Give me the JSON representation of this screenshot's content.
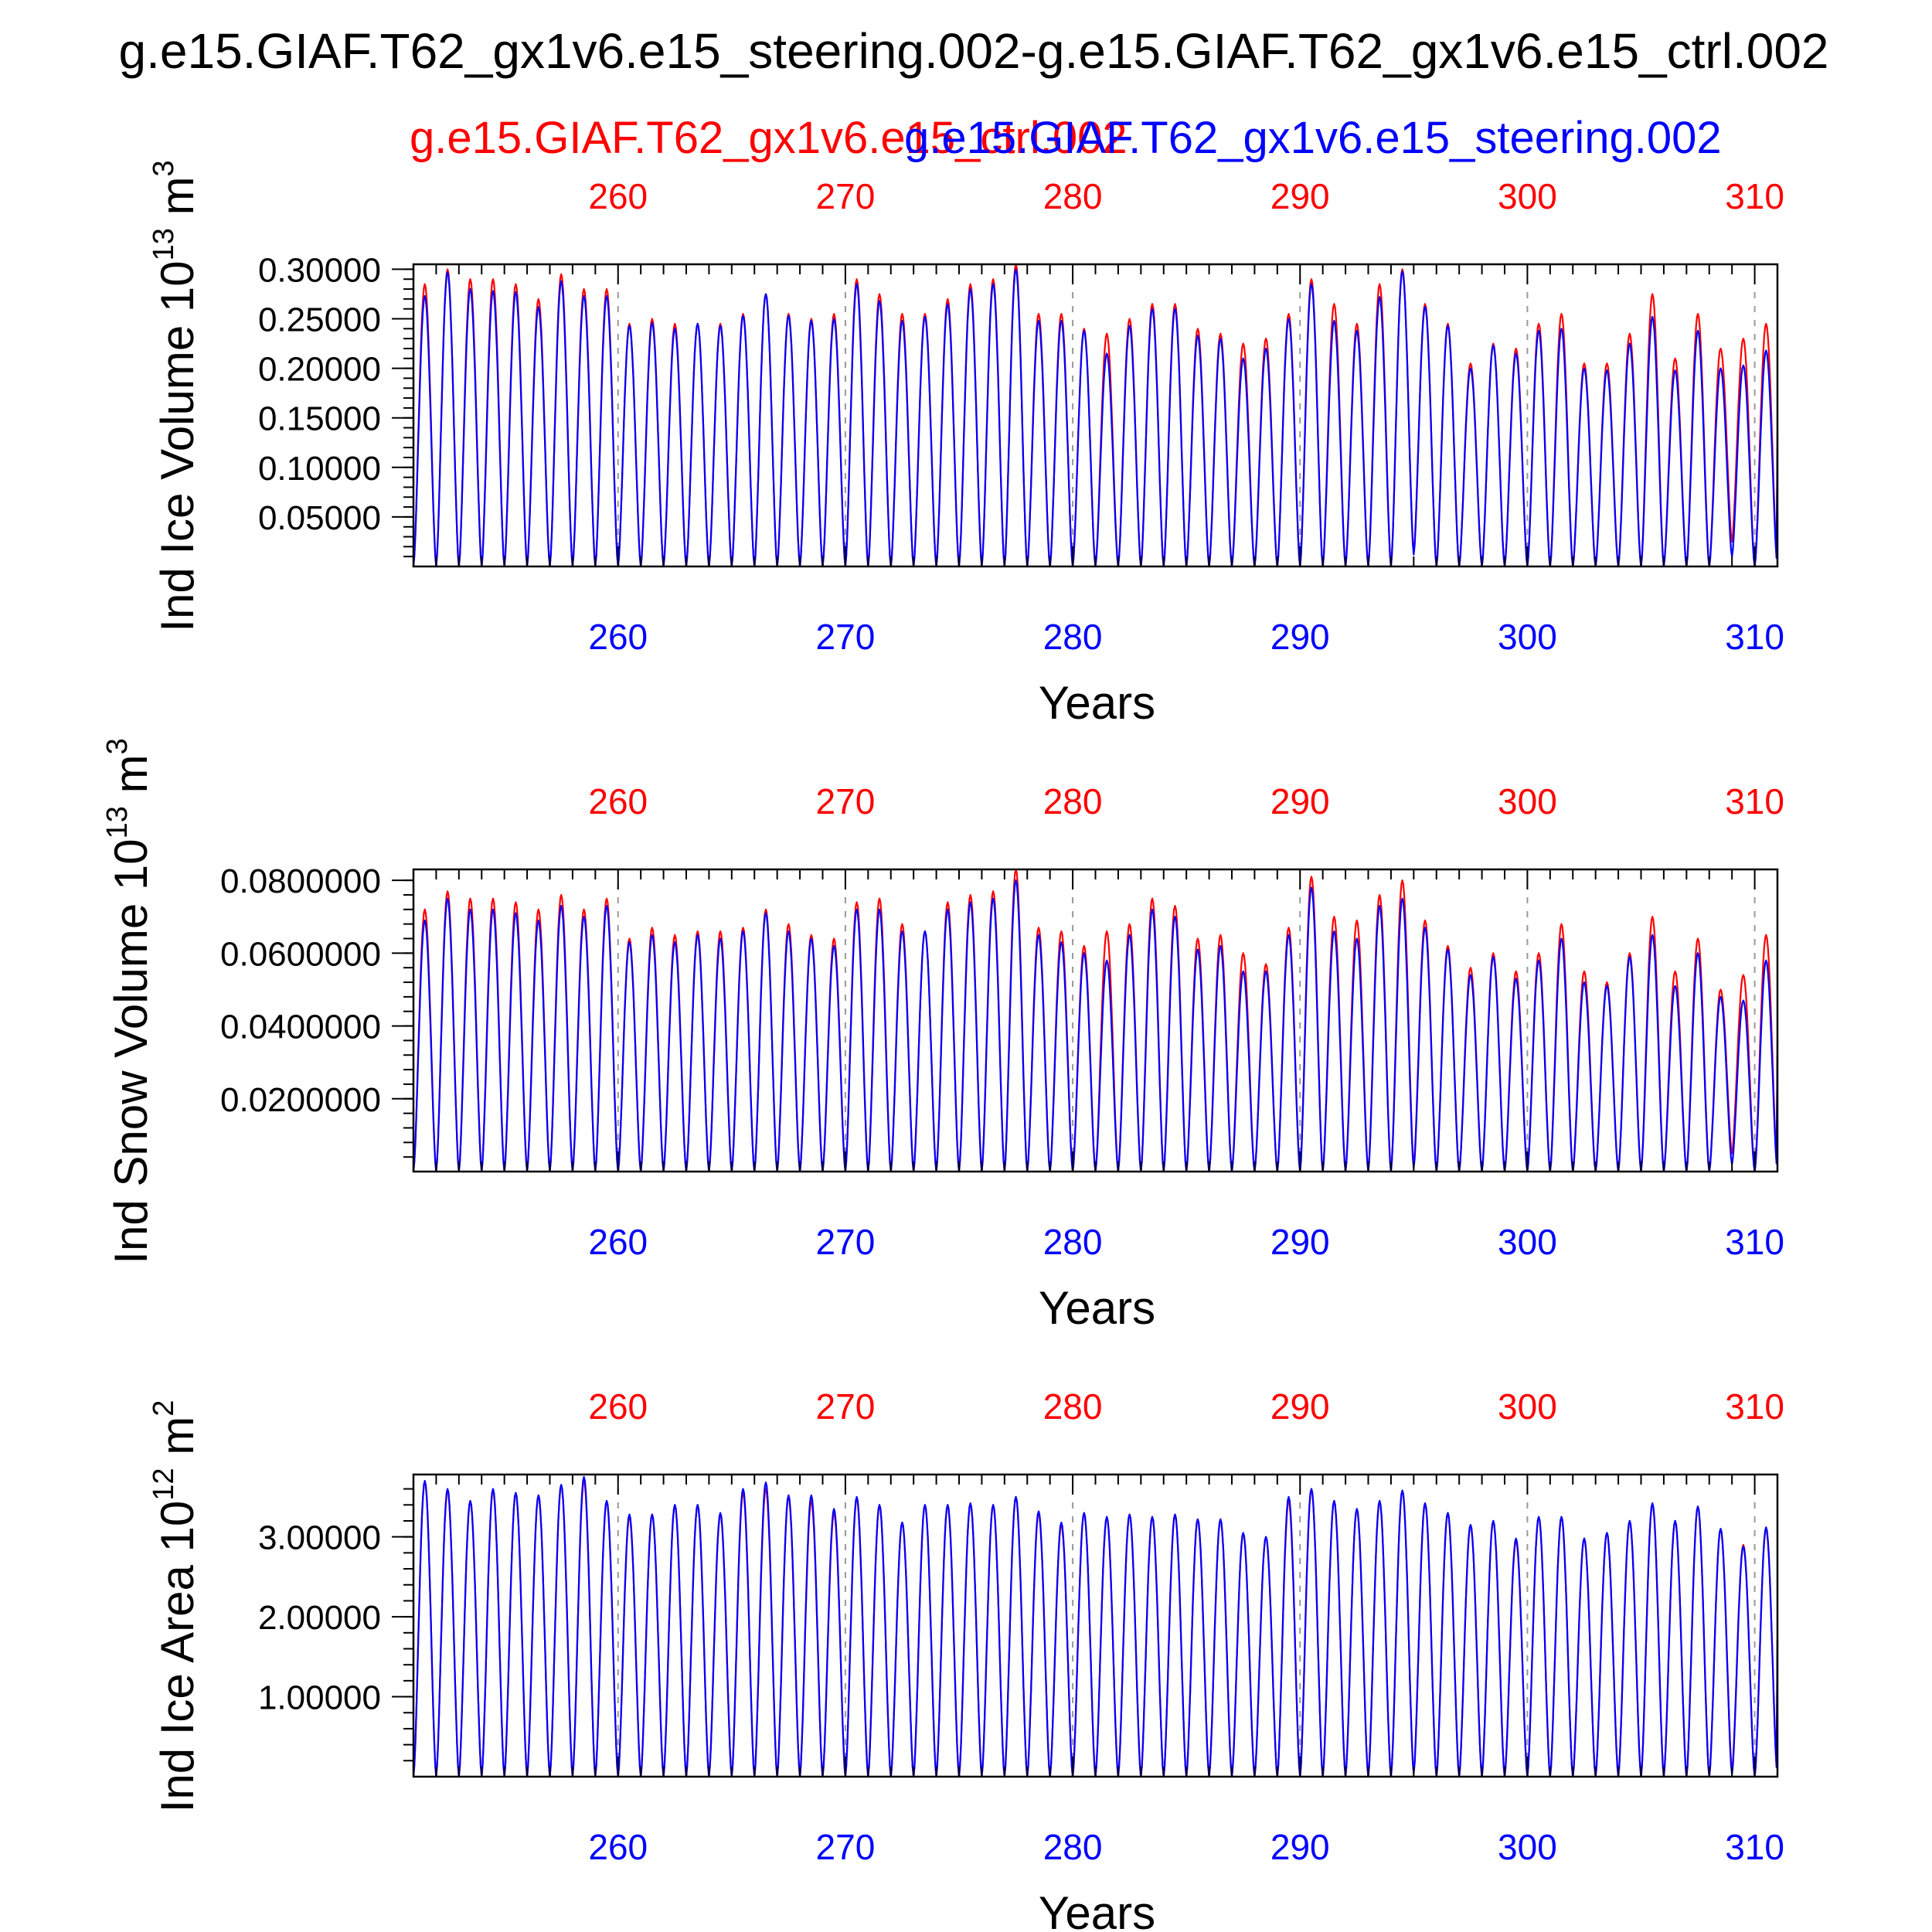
{
  "title": "g.e15.GIAF.T62_gx1v6.e15_steering.002-g.e15.GIAF.T62_gx1v6.e15_ctrl.002",
  "legend": {
    "ctrl_label": "g.e15.GIAF.T62_gx1v6.e15_ctrl.002",
    "steering_label": "g.e15.GIAF.T62_gx1v6.e15_steering.002"
  },
  "colors": {
    "ctrl": "#ff0000",
    "steering": "#0000ff",
    "frame": "#000000",
    "grid": "#999999"
  },
  "xlabel": "Years",
  "x_ticks": [
    260,
    270,
    280,
    290,
    300,
    310
  ],
  "xlim": [
    251,
    311
  ],
  "chart_data": [
    {
      "type": "line",
      "name": "ice-volume",
      "ylabel_main": "Ind Ice Volume 10",
      "ylabel_exp": "13",
      "ylabel_unit": " m",
      "ylabel_unit_exp": "3",
      "xlabel": "Years",
      "ylim": [
        0,
        0.305
      ],
      "y_ticks": [
        0.05,
        0.1,
        0.15,
        0.2,
        0.25,
        0.3
      ],
      "y_tick_labels": [
        "0.05000",
        "0.10000",
        "0.15000",
        "0.20000",
        "0.25000",
        "0.30000"
      ],
      "x_ticks": [
        260,
        270,
        280,
        290,
        300,
        310
      ],
      "series": [
        {
          "name": "g.e15.GIAF.T62_gx1v6.e15_ctrl.002",
          "color": "#ff0000",
          "annual_max": [
            0.285,
            0.3,
            0.29,
            0.29,
            0.285,
            0.27,
            0.295,
            0.28,
            0.28,
            0.245,
            0.25,
            0.245,
            0.245,
            0.245,
            0.255,
            0.275,
            0.255,
            0.25,
            0.255,
            0.29,
            0.275,
            0.255,
            0.255,
            0.27,
            0.285,
            0.29,
            0.305,
            0.255,
            0.255,
            0.24,
            0.235,
            0.25,
            0.265,
            0.265,
            0.24,
            0.235,
            0.225,
            0.23,
            0.255,
            0.29,
            0.265,
            0.245,
            0.285,
            0.3,
            0.265,
            0.245,
            0.205,
            0.225,
            0.22,
            0.245,
            0.255,
            0.205,
            0.205,
            0.235,
            0.275,
            0.21,
            0.255,
            0.22,
            0.23,
            0.245
          ],
          "annual_min": [
            0.0,
            0.0,
            0.0,
            0.0,
            0.0,
            0.0,
            0.0,
            0.0,
            0.0,
            0.0,
            0.0,
            0.0,
            0.0,
            0.0,
            0.0,
            0.0,
            0.0,
            0.0,
            0.0,
            0.0,
            0.0,
            0.0,
            0.0,
            0.0,
            0.0,
            0.0,
            0.0,
            0.0,
            0.0,
            0.0,
            0.0,
            0.0,
            0.0,
            0.0,
            0.0,
            0.0,
            0.0,
            0.0,
            0.0,
            0.0,
            0.0,
            0.0,
            0.0,
            0.0,
            0.015,
            0.0,
            0.0,
            0.0,
            0.0,
            0.0,
            0.0,
            0.0,
            0.0,
            0.0,
            0.0,
            0.0,
            0.0,
            0.0,
            0.025,
            0.0
          ]
        },
        {
          "name": "g.e15.GIAF.T62_gx1v6.e15_steering.002",
          "color": "#0000ff",
          "annual_max": [
            0.273,
            0.297,
            0.28,
            0.278,
            0.277,
            0.262,
            0.288,
            0.273,
            0.273,
            0.243,
            0.246,
            0.24,
            0.245,
            0.243,
            0.253,
            0.275,
            0.253,
            0.248,
            0.25,
            0.285,
            0.268,
            0.248,
            0.252,
            0.265,
            0.28,
            0.285,
            0.3,
            0.248,
            0.248,
            0.238,
            0.215,
            0.243,
            0.26,
            0.26,
            0.233,
            0.23,
            0.21,
            0.22,
            0.25,
            0.285,
            0.248,
            0.238,
            0.272,
            0.298,
            0.262,
            0.243,
            0.2,
            0.223,
            0.215,
            0.238,
            0.24,
            0.2,
            0.198,
            0.225,
            0.252,
            0.198,
            0.238,
            0.2,
            0.203,
            0.218
          ],
          "annual_min": [
            0.0,
            0.0,
            0.0,
            0.0,
            0.0,
            0.0,
            0.0,
            0.0,
            0.0,
            0.0,
            0.0,
            0.0,
            0.0,
            0.0,
            0.0,
            0.0,
            0.0,
            0.0,
            0.0,
            0.0,
            0.0,
            0.0,
            0.0,
            0.0,
            0.0,
            0.0,
            0.0,
            0.0,
            0.0,
            0.0,
            0.0,
            0.0,
            0.0,
            0.0,
            0.0,
            0.0,
            0.0,
            0.0,
            0.0,
            0.0,
            0.0,
            0.0,
            0.0,
            0.0,
            0.012,
            0.0,
            0.0,
            0.0,
            0.0,
            0.0,
            0.0,
            0.0,
            0.0,
            0.0,
            0.0,
            0.0,
            0.0,
            0.0,
            0.01,
            0.0
          ]
        }
      ]
    },
    {
      "type": "line",
      "name": "snow-volume",
      "ylabel_main": "Ind Snow Volume 10",
      "ylabel_exp": "13",
      "ylabel_unit": " m",
      "ylabel_unit_exp": "3",
      "xlabel": "Years",
      "ylim": [
        0,
        0.083
      ],
      "y_ticks": [
        0.02,
        0.04,
        0.06,
        0.08
      ],
      "y_tick_labels": [
        "0.0200000",
        "0.0400000",
        "0.0600000",
        "0.0800000"
      ],
      "x_ticks": [
        260,
        270,
        280,
        290,
        300,
        310
      ],
      "series": [
        {
          "name": "g.e15.GIAF.T62_gx1v6.e15_ctrl.002",
          "color": "#ff0000",
          "annual_max": [
            0.072,
            0.077,
            0.075,
            0.075,
            0.074,
            0.072,
            0.076,
            0.072,
            0.075,
            0.064,
            0.067,
            0.065,
            0.066,
            0.066,
            0.067,
            0.072,
            0.068,
            0.065,
            0.064,
            0.074,
            0.075,
            0.068,
            0.066,
            0.074,
            0.076,
            0.077,
            0.083,
            0.067,
            0.066,
            0.062,
            0.066,
            0.068,
            0.075,
            0.073,
            0.064,
            0.065,
            0.06,
            0.057,
            0.067,
            0.081,
            0.07,
            0.069,
            0.076,
            0.08,
            0.069,
            0.062,
            0.056,
            0.06,
            0.055,
            0.06,
            0.068,
            0.055,
            0.052,
            0.06,
            0.07,
            0.055,
            0.064,
            0.05,
            0.054,
            0.065
          ],
          "annual_min": [
            0.0,
            0.0,
            0.0,
            0.0,
            0.0,
            0.0,
            0.0,
            0.0,
            0.0,
            0.0,
            0.0,
            0.0,
            0.0,
            0.0,
            0.0,
            0.0,
            0.0,
            0.0,
            0.0,
            0.0,
            0.0,
            0.0,
            0.0,
            0.0,
            0.0,
            0.0,
            0.0,
            0.0,
            0.0,
            0.0,
            0.0,
            0.0,
            0.0,
            0.0,
            0.0,
            0.0,
            0.0,
            0.0,
            0.0,
            0.0,
            0.0,
            0.0,
            0.0,
            0.0,
            0.002,
            0.0,
            0.0,
            0.0,
            0.0,
            0.0,
            0.0,
            0.0,
            0.0,
            0.0,
            0.0,
            0.0,
            0.0,
            0.0,
            0.005,
            0.0
          ]
        },
        {
          "name": "g.e15.GIAF.T62_gx1v6.e15_steering.002",
          "color": "#0000ff",
          "annual_max": [
            0.069,
            0.075,
            0.072,
            0.072,
            0.071,
            0.069,
            0.073,
            0.07,
            0.073,
            0.063,
            0.065,
            0.063,
            0.065,
            0.064,
            0.066,
            0.071,
            0.066,
            0.064,
            0.062,
            0.072,
            0.072,
            0.066,
            0.066,
            0.072,
            0.074,
            0.075,
            0.08,
            0.065,
            0.063,
            0.06,
            0.058,
            0.065,
            0.072,
            0.07,
            0.061,
            0.062,
            0.055,
            0.055,
            0.065,
            0.078,
            0.066,
            0.064,
            0.073,
            0.075,
            0.067,
            0.061,
            0.054,
            0.059,
            0.053,
            0.058,
            0.064,
            0.052,
            0.051,
            0.059,
            0.065,
            0.051,
            0.06,
            0.048,
            0.047,
            0.058
          ],
          "annual_min": [
            0.0,
            0.0,
            0.0,
            0.0,
            0.0,
            0.0,
            0.0,
            0.0,
            0.0,
            0.0,
            0.0,
            0.0,
            0.0,
            0.0,
            0.0,
            0.0,
            0.0,
            0.0,
            0.0,
            0.0,
            0.0,
            0.0,
            0.0,
            0.0,
            0.0,
            0.0,
            0.0,
            0.0,
            0.0,
            0.0,
            0.0,
            0.0,
            0.0,
            0.0,
            0.0,
            0.0,
            0.0,
            0.0,
            0.0,
            0.0,
            0.0,
            0.0,
            0.0,
            0.0,
            0.001,
            0.0,
            0.0,
            0.0,
            0.0,
            0.0,
            0.0,
            0.0,
            0.0,
            0.0,
            0.0,
            0.0,
            0.0,
            0.0,
            0.002,
            0.0
          ]
        }
      ]
    },
    {
      "type": "line",
      "name": "ice-area",
      "ylabel_main": "Ind Ice Area 10",
      "ylabel_exp": "12",
      "ylabel_unit": " m",
      "ylabel_unit_exp": "2",
      "xlabel": "Years",
      "ylim": [
        0,
        3.78
      ],
      "y_ticks": [
        1.0,
        2.0,
        3.0
      ],
      "y_tick_labels": [
        "1.00000",
        "2.00000",
        "3.00000"
      ],
      "x_ticks": [
        260,
        270,
        280,
        290,
        300,
        310
      ],
      "series": [
        {
          "name": "g.e15.GIAF.T62_gx1v6.e15_ctrl.002",
          "color": "#ff0000",
          "annual_max": [
            3.7,
            3.58,
            3.45,
            3.58,
            3.55,
            3.52,
            3.65,
            3.7,
            3.45,
            3.25,
            3.28,
            3.4,
            3.4,
            3.28,
            3.55,
            3.6,
            3.5,
            3.45,
            3.3,
            3.48,
            3.4,
            3.18,
            3.4,
            3.4,
            3.42,
            3.4,
            3.5,
            3.3,
            3.15,
            3.3,
            3.25,
            3.28,
            3.25,
            3.28,
            3.22,
            3.22,
            3.05,
            3.0,
            3.45,
            3.6,
            3.45,
            3.35,
            3.45,
            3.58,
            3.42,
            3.3,
            3.15,
            3.2,
            2.95,
            3.25,
            3.25,
            2.98,
            3.05,
            3.2,
            3.42,
            3.2,
            3.38,
            3.1,
            2.9,
            3.1
          ],
          "annual_min": [
            0.0,
            0.0,
            0.0,
            0.0,
            0.0,
            0.0,
            0.0,
            0.0,
            0.0,
            0.0,
            0.0,
            0.0,
            0.0,
            0.0,
            0.0,
            0.0,
            0.0,
            0.0,
            0.0,
            0.0,
            0.0,
            0.0,
            0.0,
            0.0,
            0.0,
            0.0,
            0.0,
            0.0,
            0.0,
            0.0,
            0.0,
            0.0,
            0.0,
            0.0,
            0.0,
            0.0,
            0.0,
            0.0,
            0.0,
            0.0,
            0.0,
            0.0,
            0.0,
            0.0,
            0.05,
            0.0,
            0.0,
            0.0,
            0.0,
            0.0,
            0.0,
            0.0,
            0.0,
            0.0,
            0.0,
            0.0,
            0.0,
            0.0,
            0.08,
            0.0
          ]
        },
        {
          "name": "g.e15.GIAF.T62_gx1v6.e15_steering.002",
          "color": "#0000ff",
          "annual_max": [
            3.7,
            3.6,
            3.45,
            3.6,
            3.55,
            3.52,
            3.65,
            3.75,
            3.45,
            3.28,
            3.28,
            3.4,
            3.4,
            3.3,
            3.6,
            3.68,
            3.52,
            3.52,
            3.35,
            3.5,
            3.4,
            3.18,
            3.4,
            3.4,
            3.42,
            3.4,
            3.5,
            3.32,
            3.18,
            3.3,
            3.25,
            3.28,
            3.25,
            3.28,
            3.22,
            3.22,
            3.05,
            3.0,
            3.5,
            3.6,
            3.45,
            3.35,
            3.45,
            3.58,
            3.42,
            3.3,
            3.15,
            3.2,
            2.98,
            3.25,
            3.25,
            2.98,
            3.05,
            3.2,
            3.42,
            3.2,
            3.38,
            3.1,
            2.88,
            3.12
          ],
          "annual_min": [
            0.0,
            0.0,
            0.0,
            0.0,
            0.0,
            0.0,
            0.0,
            0.0,
            0.0,
            0.0,
            0.0,
            0.0,
            0.0,
            0.0,
            0.0,
            0.0,
            0.0,
            0.0,
            0.0,
            0.0,
            0.0,
            0.0,
            0.0,
            0.0,
            0.0,
            0.0,
            0.0,
            0.0,
            0.0,
            0.0,
            0.0,
            0.0,
            0.0,
            0.0,
            0.0,
            0.0,
            0.0,
            0.0,
            0.0,
            0.0,
            0.0,
            0.0,
            0.0,
            0.0,
            0.04,
            0.0,
            0.0,
            0.0,
            0.0,
            0.0,
            0.0,
            0.0,
            0.0,
            0.0,
            0.0,
            0.0,
            0.0,
            0.0,
            0.03,
            0.0
          ]
        }
      ]
    }
  ]
}
